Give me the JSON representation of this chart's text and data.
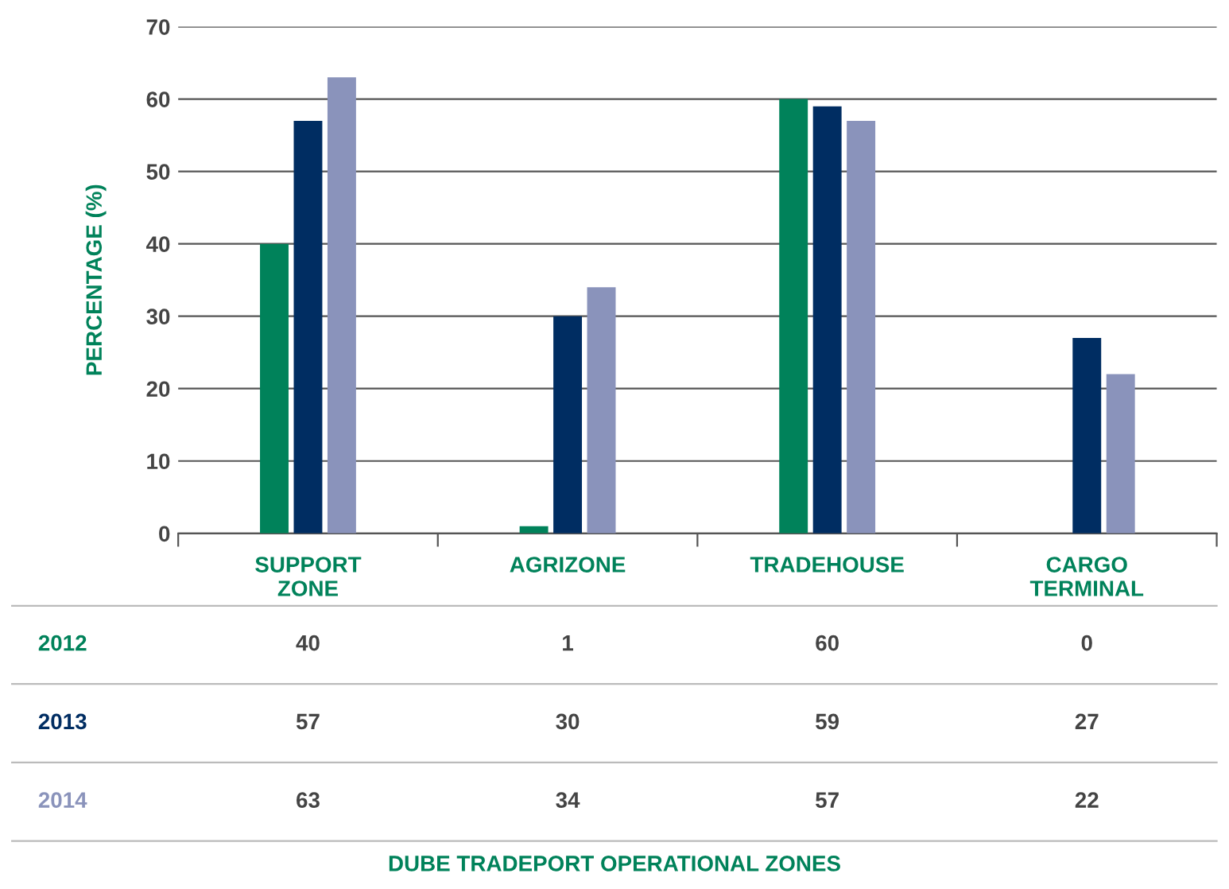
{
  "chart_data": {
    "type": "bar",
    "annotations": [
      "DUBE TRADEPORT OPERATIONAL ZONES"
    ],
    "ylabel": "PERCENTAGE (%)",
    "categories": [
      "SUPPORT\nZONE",
      "AGRIZONE",
      "TRADEHOUSE",
      "CARGO\nTERMINAL"
    ],
    "series": [
      {
        "name": "2012",
        "color": "#00825a",
        "values": [
          40,
          1,
          60,
          0
        ]
      },
      {
        "name": "2013",
        "color": "#002d62",
        "values": [
          57,
          30,
          59,
          27
        ]
      },
      {
        "name": "2014",
        "color": "#8a93bb",
        "values": [
          63,
          34,
          57,
          22
        ]
      }
    ],
    "ylim": [
      0,
      70
    ],
    "yticks": [
      0,
      10,
      20,
      30,
      40,
      50,
      60,
      70
    ],
    "grid": "y",
    "data_labels": true,
    "legend": false
  }
}
